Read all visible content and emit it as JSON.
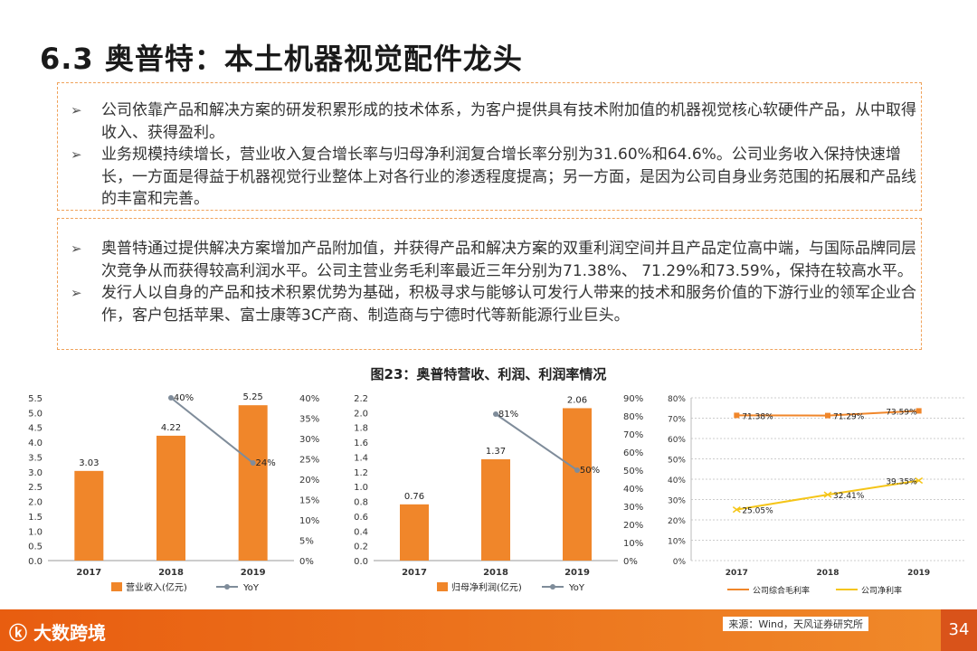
{
  "title": "6.3  奥普特：本土机器视觉配件龙头",
  "box1": [
    "公司依靠产品和解决方案的研发积累形成的技术体系，为客户提供具有技术附加值的机器视觉核心软硬件产品，从中取得收入、获得盈利。",
    "业务规模持续增长，营业收入复合增长率与归母净利润复合增长率分别为31.60%和64.6%。公司业务收入保持快速增长，一方面是得益于机器视觉行业整体上对各行业的渗透程度提高；另一方面，是因为公司自身业务范围的拓展和产品线的丰富和完善。"
  ],
  "box2": [
    "奥普特通过提供解决方案增加产品附加值，并获得产品和解决方案的双重利润空间并且产品定位高中端，与国际品牌同层次竞争从而获得较高利润水平。公司主营业务毛利率最近三年分别为71.38%、 71.29%和73.59%，保持在较高水平。",
    "发行人以自身的产品和技术积累优势为基础，积极寻求与能够认可发行人带来的技术和服务价值的下游行业的领军企业合作，客户包括苹果、富士康等3C产商、制造商与宁德时代等新能源行业巨头。"
  ],
  "figure_title": "图23：奥普特营收、利润、利润率情况",
  "source": "来源：Wind，天风证券研究所",
  "page_number": "34",
  "footer_logo": "大数跨境",
  "colors": {
    "bar": "#f0862a",
    "line_gray": "#7f8c9a",
    "line_orange": "#f0862a",
    "line_yellow": "#f5c518",
    "footer": "#e85d10"
  },
  "chart_data": [
    {
      "type": "bar",
      "categories": [
        "2017",
        "2018",
        "2019"
      ],
      "series": [
        {
          "name": "营业收入(亿元)",
          "values": [
            3.03,
            4.22,
            5.25
          ],
          "labels": [
            "3.03",
            "4.22",
            "5.25"
          ]
        },
        {
          "name": "YoY",
          "axis": "right",
          "values": [
            null,
            40,
            24
          ],
          "labels": [
            "",
            "40%",
            "24%"
          ]
        }
      ],
      "ylim": [
        0,
        5.5
      ],
      "yticks": [
        "0.0",
        "0.5",
        "1.0",
        "1.5",
        "2.0",
        "2.5",
        "3.0",
        "3.5",
        "4.0",
        "4.5",
        "5.0",
        "5.5"
      ],
      "y2lim": [
        0,
        40
      ],
      "y2ticks": [
        "0%",
        "5%",
        "10%",
        "15%",
        "20%",
        "25%",
        "30%",
        "35%",
        "40%"
      ]
    },
    {
      "type": "bar",
      "categories": [
        "2017",
        "2018",
        "2019"
      ],
      "series": [
        {
          "name": "归母净利润(亿元)",
          "values": [
            0.76,
            1.37,
            2.06
          ],
          "labels": [
            "0.76",
            "1.37",
            "2.06"
          ]
        },
        {
          "name": "YoY",
          "axis": "right",
          "values": [
            null,
            81,
            50
          ],
          "labels": [
            "",
            "81%",
            "50%"
          ]
        }
      ],
      "ylim": [
        0,
        2.2
      ],
      "yticks": [
        "0.0",
        "0.2",
        "0.4",
        "0.6",
        "0.8",
        "1.0",
        "1.2",
        "1.4",
        "1.6",
        "1.8",
        "2.0",
        "2.2"
      ],
      "y2lim": [
        0,
        90
      ],
      "y2ticks": [
        "0%",
        "10%",
        "20%",
        "30%",
        "40%",
        "50%",
        "60%",
        "70%",
        "80%",
        "90%"
      ]
    },
    {
      "type": "line",
      "categories": [
        "2017",
        "2018",
        "2019"
      ],
      "series": [
        {
          "name": "公司综合毛利率",
          "values": [
            71.38,
            71.29,
            73.59
          ],
          "labels": [
            "71.38%",
            "71.29%",
            "73.59%"
          ]
        },
        {
          "name": "公司净利率",
          "values": [
            25.05,
            32.41,
            39.35
          ],
          "labels": [
            "25.05%",
            "32.41%",
            "39.35%"
          ]
        }
      ],
      "ylim": [
        0,
        80
      ],
      "yticks": [
        "0%",
        "10%",
        "20%",
        "30%",
        "40%",
        "50%",
        "60%",
        "70%",
        "80%"
      ]
    }
  ]
}
